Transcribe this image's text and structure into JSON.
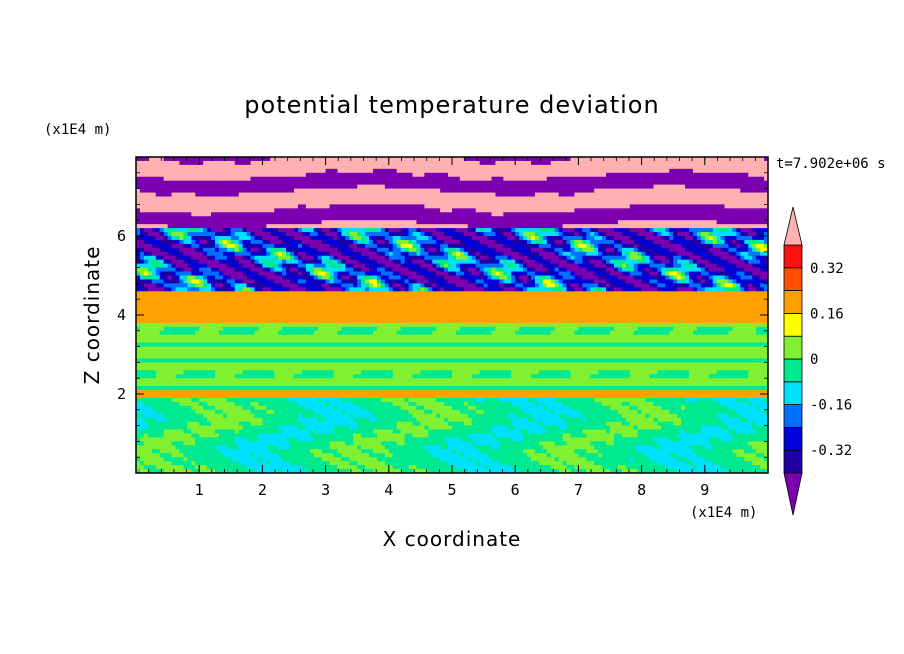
{
  "chart_data": {
    "type": "heatmap",
    "title": "potential temperature deviation",
    "xlabel": "X coordinate",
    "ylabel": "Z coordinate",
    "x_units": "(x1E4 m)",
    "y_units": "(x1E4 m)",
    "time_label": "t=7.902e+06 s",
    "xlim": [
      0,
      10
    ],
    "ylim": [
      0,
      8
    ],
    "x_ticks": [
      "1",
      "2",
      "3",
      "4",
      "5",
      "6",
      "7",
      "8",
      "9"
    ],
    "y_ticks": [
      "2",
      "4",
      "6"
    ],
    "colorbar": {
      "levels": [
        -0.4,
        -0.32,
        -0.24,
        -0.16,
        -0.08,
        0,
        0.08,
        0.16,
        0.24,
        0.32,
        0.4
      ],
      "colors": [
        "#7a00b0",
        "#2000a0",
        "#0000d8",
        "#0070ff",
        "#00e0ff",
        "#00e890",
        "#80f030",
        "#ffff00",
        "#ffa000",
        "#ff5000",
        "#ff1010",
        "#ffb0b0"
      ],
      "tick_labels": [
        "0.32",
        "0.16",
        "0",
        "-0.16",
        "-0.32"
      ],
      "tick_values": [
        0.32,
        0.16,
        0,
        -0.16,
        -0.32
      ],
      "extend": "both"
    },
    "layers": [
      {
        "z": [
          0,
          1.9
        ],
        "dominant": -0.04,
        "pattern": "alternating cells"
      },
      {
        "z": [
          1.9,
          2.1
        ],
        "dominant": 0.2,
        "pattern": "thin band"
      },
      {
        "z": [
          2.1,
          3.8
        ],
        "dominant": 0.02,
        "pattern": "stratified"
      },
      {
        "z": [
          3.8,
          4.6
        ],
        "dominant": 0.2,
        "pattern": "warm band"
      },
      {
        "z": [
          4.6,
          6.2
        ],
        "dominant": -0.4,
        "pattern": "turbulent mix"
      },
      {
        "z": [
          6.2,
          8.0
        ],
        "dominant": 0.4,
        "pattern": "pink/purple stripes"
      }
    ]
  }
}
